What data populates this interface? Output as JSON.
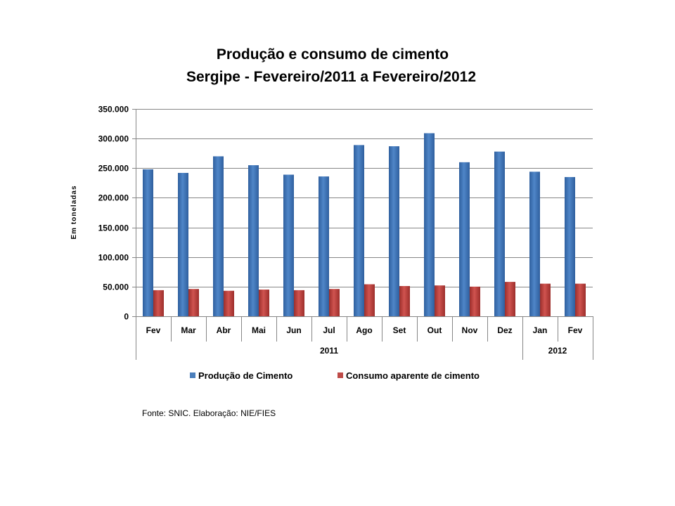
{
  "chart_data": {
    "type": "bar",
    "title": "Produção e consumo de cimento",
    "subtitle": "Sergipe - Fevereiro/2011 a Fevereiro/2012",
    "xlabel": "",
    "ylabel": "Em toneladas",
    "ylim": [
      0,
      350000
    ],
    "yticks": [
      0,
      50000,
      100000,
      150000,
      200000,
      250000,
      300000,
      350000
    ],
    "ytick_labels": [
      "0",
      "50.000",
      "100.000",
      "150.000",
      "200.000",
      "250.000",
      "300.000",
      "350.000"
    ],
    "grid": true,
    "categories": [
      "Fev",
      "Mar",
      "Abr",
      "Mai",
      "Jun",
      "Jul",
      "Ago",
      "Set",
      "Out",
      "Nov",
      "Dez",
      "Jan",
      "Fev"
    ],
    "category_groups": [
      {
        "label": "2011",
        "count": 11
      },
      {
        "label": "2012",
        "count": 2
      }
    ],
    "series": [
      {
        "name": "Produção de Cimento",
        "color": "#4a7ebb",
        "values": [
          248000,
          242000,
          270000,
          255000,
          239000,
          236000,
          289000,
          287000,
          309000,
          260000,
          278000,
          244000,
          235000
        ]
      },
      {
        "name": "Consumo aparente de cimento",
        "color": "#be4b48",
        "values": [
          44000,
          46000,
          43000,
          45000,
          44000,
          46000,
          54000,
          51000,
          52000,
          50000,
          58000,
          55000,
          55000
        ]
      }
    ],
    "legend_position": "bottom",
    "source": "Fonte: SNIC. Elaboração: NIE/FIES"
  }
}
